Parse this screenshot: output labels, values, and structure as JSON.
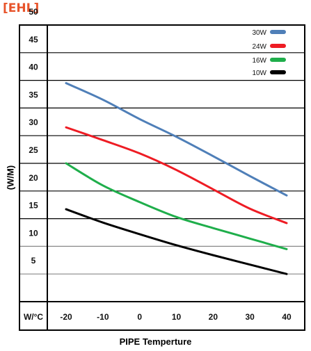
{
  "brand": "[EHL]",
  "chart_data": {
    "type": "line",
    "title": "",
    "xlabel": "PIPE  Temperture",
    "ylabel": "(W/M)",
    "corner_label": "W/°C",
    "x_ticks": [
      -20,
      -10,
      0,
      10,
      20,
      30,
      40
    ],
    "y_ticks": [
      5,
      10,
      15,
      20,
      25,
      30,
      35,
      40,
      45,
      50
    ],
    "xlim": [
      -20,
      40
    ],
    "ylim": [
      0,
      50
    ],
    "grid": true,
    "legend_position": "top-right",
    "series": [
      {
        "name": "30W",
        "color": "#4f7fb8",
        "x": [
          -20,
          -10,
          0,
          10,
          20,
          30,
          40
        ],
        "y": [
          39.5,
          36.5,
          33.0,
          29.8,
          26.3,
          22.7,
          19.2
        ]
      },
      {
        "name": "24W",
        "color": "#ee1c24",
        "x": [
          -20,
          -10,
          0,
          10,
          20,
          30,
          40
        ],
        "y": [
          31.5,
          29.2,
          26.8,
          23.8,
          20.3,
          16.8,
          14.2
        ]
      },
      {
        "name": "16W",
        "color": "#1fae4b",
        "x": [
          -20,
          -10,
          0,
          10,
          20,
          30,
          40
        ],
        "y": [
          25.0,
          21.0,
          18.0,
          15.3,
          13.3,
          11.4,
          9.5
        ]
      },
      {
        "name": "10W",
        "color": "#000000",
        "x": [
          -20,
          -10,
          0,
          10,
          20,
          30,
          40
        ],
        "y": [
          16.7,
          14.3,
          12.2,
          10.2,
          8.4,
          6.7,
          5.0
        ]
      }
    ]
  }
}
